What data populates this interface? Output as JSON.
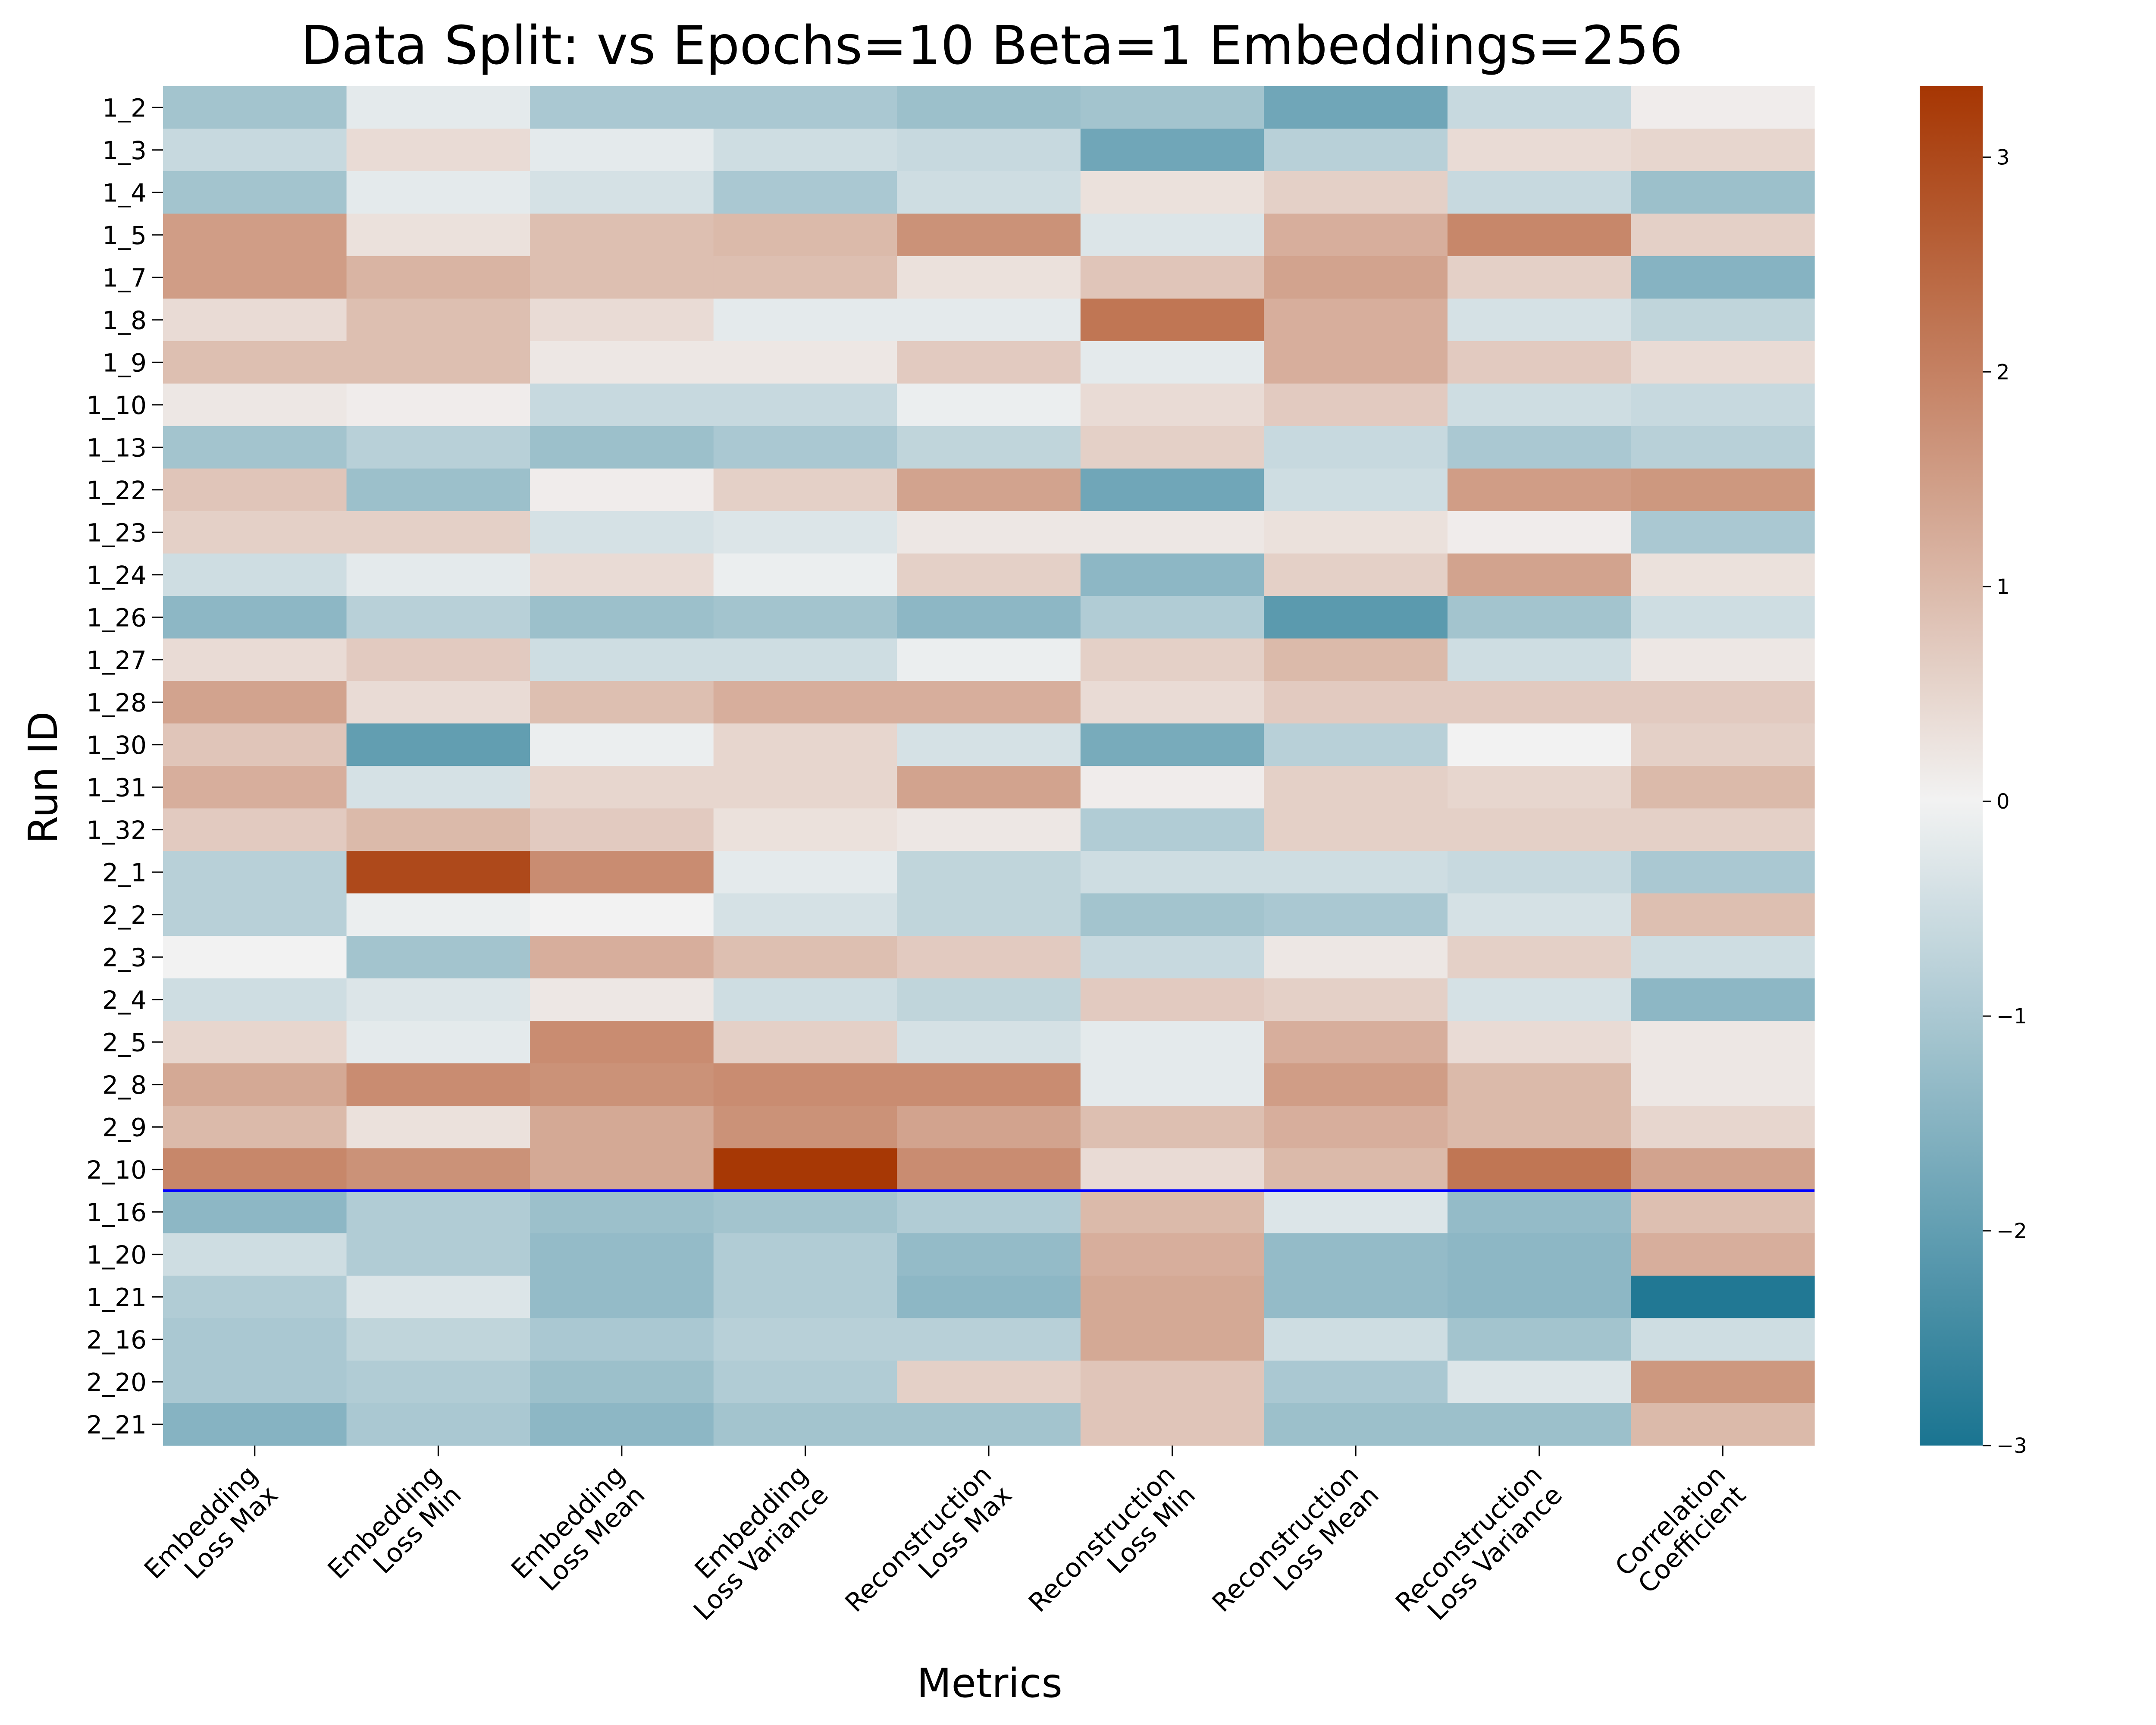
{
  "chart_data": {
    "type": "heatmap",
    "title": "Data Split: vs Epochs=10 Beta=1 Embeddings=256",
    "xlabel": "Metrics",
    "ylabel": "Run ID",
    "columns": [
      [
        "Embedding",
        "Loss Max"
      ],
      [
        "Embedding",
        "Loss Min"
      ],
      [
        "Embedding",
        "Loss Mean"
      ],
      [
        "Embedding",
        "Loss Variance"
      ],
      [
        "Reconstruction",
        "Loss Max"
      ],
      [
        "Reconstruction",
        "Loss Min"
      ],
      [
        "Reconstruction",
        "Loss Mean"
      ],
      [
        "Reconstruction",
        "Loss Variance"
      ],
      [
        "Correlation",
        "Coefficient"
      ]
    ],
    "rows": [
      "1_2",
      "1_3",
      "1_4",
      "1_5",
      "1_7",
      "1_8",
      "1_9",
      "1_10",
      "1_13",
      "1_22",
      "1_23",
      "1_24",
      "1_26",
      "1_27",
      "1_28",
      "1_30",
      "1_31",
      "1_32",
      "2_1",
      "2_2",
      "2_3",
      "2_4",
      "2_5",
      "2_8",
      "2_9",
      "2_10",
      "1_16",
      "1_20",
      "1_21",
      "2_16",
      "2_20",
      "2_21"
    ],
    "values": [
      [
        -1.1,
        -0.2,
        -1.0,
        -1.0,
        -1.2,
        -1.1,
        -1.8,
        -0.6,
        0.1
      ],
      [
        -0.6,
        0.4,
        -0.2,
        -0.5,
        -0.6,
        -1.8,
        -0.8,
        0.4,
        0.5
      ],
      [
        -1.1,
        -0.2,
        -0.4,
        -1.0,
        -0.5,
        0.3,
        0.6,
        -0.6,
        -1.2
      ],
      [
        1.5,
        0.3,
        0.9,
        1.0,
        1.7,
        -0.3,
        1.2,
        1.9,
        0.6
      ],
      [
        1.5,
        1.1,
        0.9,
        0.9,
        0.3,
        0.8,
        1.4,
        0.6,
        -1.5
      ],
      [
        0.4,
        0.9,
        0.4,
        -0.2,
        -0.2,
        2.2,
        1.2,
        -0.4,
        -0.7
      ],
      [
        0.9,
        0.9,
        0.2,
        0.2,
        0.7,
        -0.2,
        1.2,
        0.7,
        0.4
      ],
      [
        0.2,
        0.1,
        -0.6,
        -0.6,
        -0.1,
        0.4,
        0.7,
        -0.5,
        -0.6
      ],
      [
        -1.1,
        -0.8,
        -1.2,
        -1.0,
        -0.7,
        0.6,
        -0.6,
        -1.0,
        -0.8
      ],
      [
        0.8,
        -1.2,
        0.1,
        0.6,
        1.4,
        -1.8,
        -0.5,
        1.5,
        1.6
      ],
      [
        0.6,
        0.6,
        -0.4,
        -0.3,
        0.2,
        0.2,
        0.3,
        0.1,
        -1.0
      ],
      [
        -0.5,
        -0.2,
        0.4,
        -0.1,
        0.6,
        -1.4,
        0.6,
        1.4,
        0.3
      ],
      [
        -1.4,
        -0.8,
        -1.2,
        -1.1,
        -1.4,
        -0.9,
        -2.1,
        -1.1,
        -0.5
      ],
      [
        0.4,
        0.7,
        -0.5,
        -0.5,
        -0.1,
        0.6,
        1.0,
        -0.5,
        0.2
      ],
      [
        1.4,
        0.4,
        0.9,
        1.2,
        1.2,
        0.4,
        0.7,
        0.7,
        0.7
      ],
      [
        0.8,
        -2.0,
        -0.1,
        0.5,
        -0.4,
        -1.7,
        -0.8,
        0.0,
        0.6
      ],
      [
        1.2,
        -0.4,
        0.5,
        0.5,
        1.4,
        0.1,
        0.6,
        0.5,
        1.0
      ],
      [
        0.7,
        1.0,
        0.7,
        0.3,
        0.2,
        -0.9,
        0.6,
        0.6,
        0.6
      ],
      [
        -0.8,
        3.0,
        1.8,
        -0.2,
        -0.7,
        -0.5,
        -0.5,
        -0.6,
        -1.0
      ],
      [
        -0.8,
        -0.1,
        0.0,
        -0.4,
        -0.7,
        -1.1,
        -1.0,
        -0.4,
        0.9
      ],
      [
        0.0,
        -1.1,
        1.2,
        0.9,
        0.7,
        -0.6,
        0.2,
        0.6,
        -0.5
      ],
      [
        -0.5,
        -0.3,
        0.2,
        -0.5,
        -0.7,
        0.7,
        0.6,
        -0.4,
        -1.4
      ],
      [
        0.5,
        -0.2,
        1.8,
        0.6,
        -0.4,
        -0.2,
        1.2,
        0.4,
        0.2
      ],
      [
        1.3,
        1.8,
        1.7,
        1.8,
        1.8,
        -0.2,
        1.5,
        1.0,
        0.2
      ],
      [
        1.0,
        0.3,
        1.3,
        1.7,
        1.4,
        0.9,
        1.2,
        1.0,
        0.5
      ],
      [
        1.9,
        1.7,
        1.3,
        3.3,
        1.8,
        0.4,
        1.0,
        2.2,
        1.4
      ],
      [
        -1.4,
        -0.9,
        -1.2,
        -1.1,
        -0.9,
        1.0,
        -0.3,
        -1.3,
        0.9
      ],
      [
        -0.5,
        -0.9,
        -1.3,
        -0.9,
        -1.3,
        1.2,
        -1.3,
        -1.4,
        1.2
      ],
      [
        -0.9,
        -0.3,
        -1.3,
        -0.9,
        -1.4,
        1.3,
        -1.3,
        -1.4,
        -2.9
      ],
      [
        -1.0,
        -0.7,
        -1.0,
        -0.8,
        -0.8,
        1.3,
        -0.5,
        -1.1,
        -0.5
      ],
      [
        -1.0,
        -0.9,
        -1.2,
        -0.9,
        0.6,
        0.8,
        -1.0,
        -0.3,
        1.6
      ],
      [
        -1.5,
        -1.0,
        -1.4,
        -1.1,
        -1.1,
        0.8,
        -1.2,
        -1.2,
        1.0
      ]
    ],
    "divider_after_row": "2_10",
    "divider_color": "#0000ff",
    "colormap": {
      "low": "#1a7491",
      "mid": "#f2f2f2",
      "high": "#a63603"
    },
    "vmin": -3,
    "vmax": 3.33,
    "colorbar_ticks": [
      -3,
      -2,
      -1,
      0,
      1,
      2,
      3
    ],
    "colorbar_tick_labels": [
      "−3",
      "−2",
      "−1",
      "0",
      "1",
      "2",
      "3"
    ],
    "grid": false,
    "legend": "colorbar-right"
  }
}
